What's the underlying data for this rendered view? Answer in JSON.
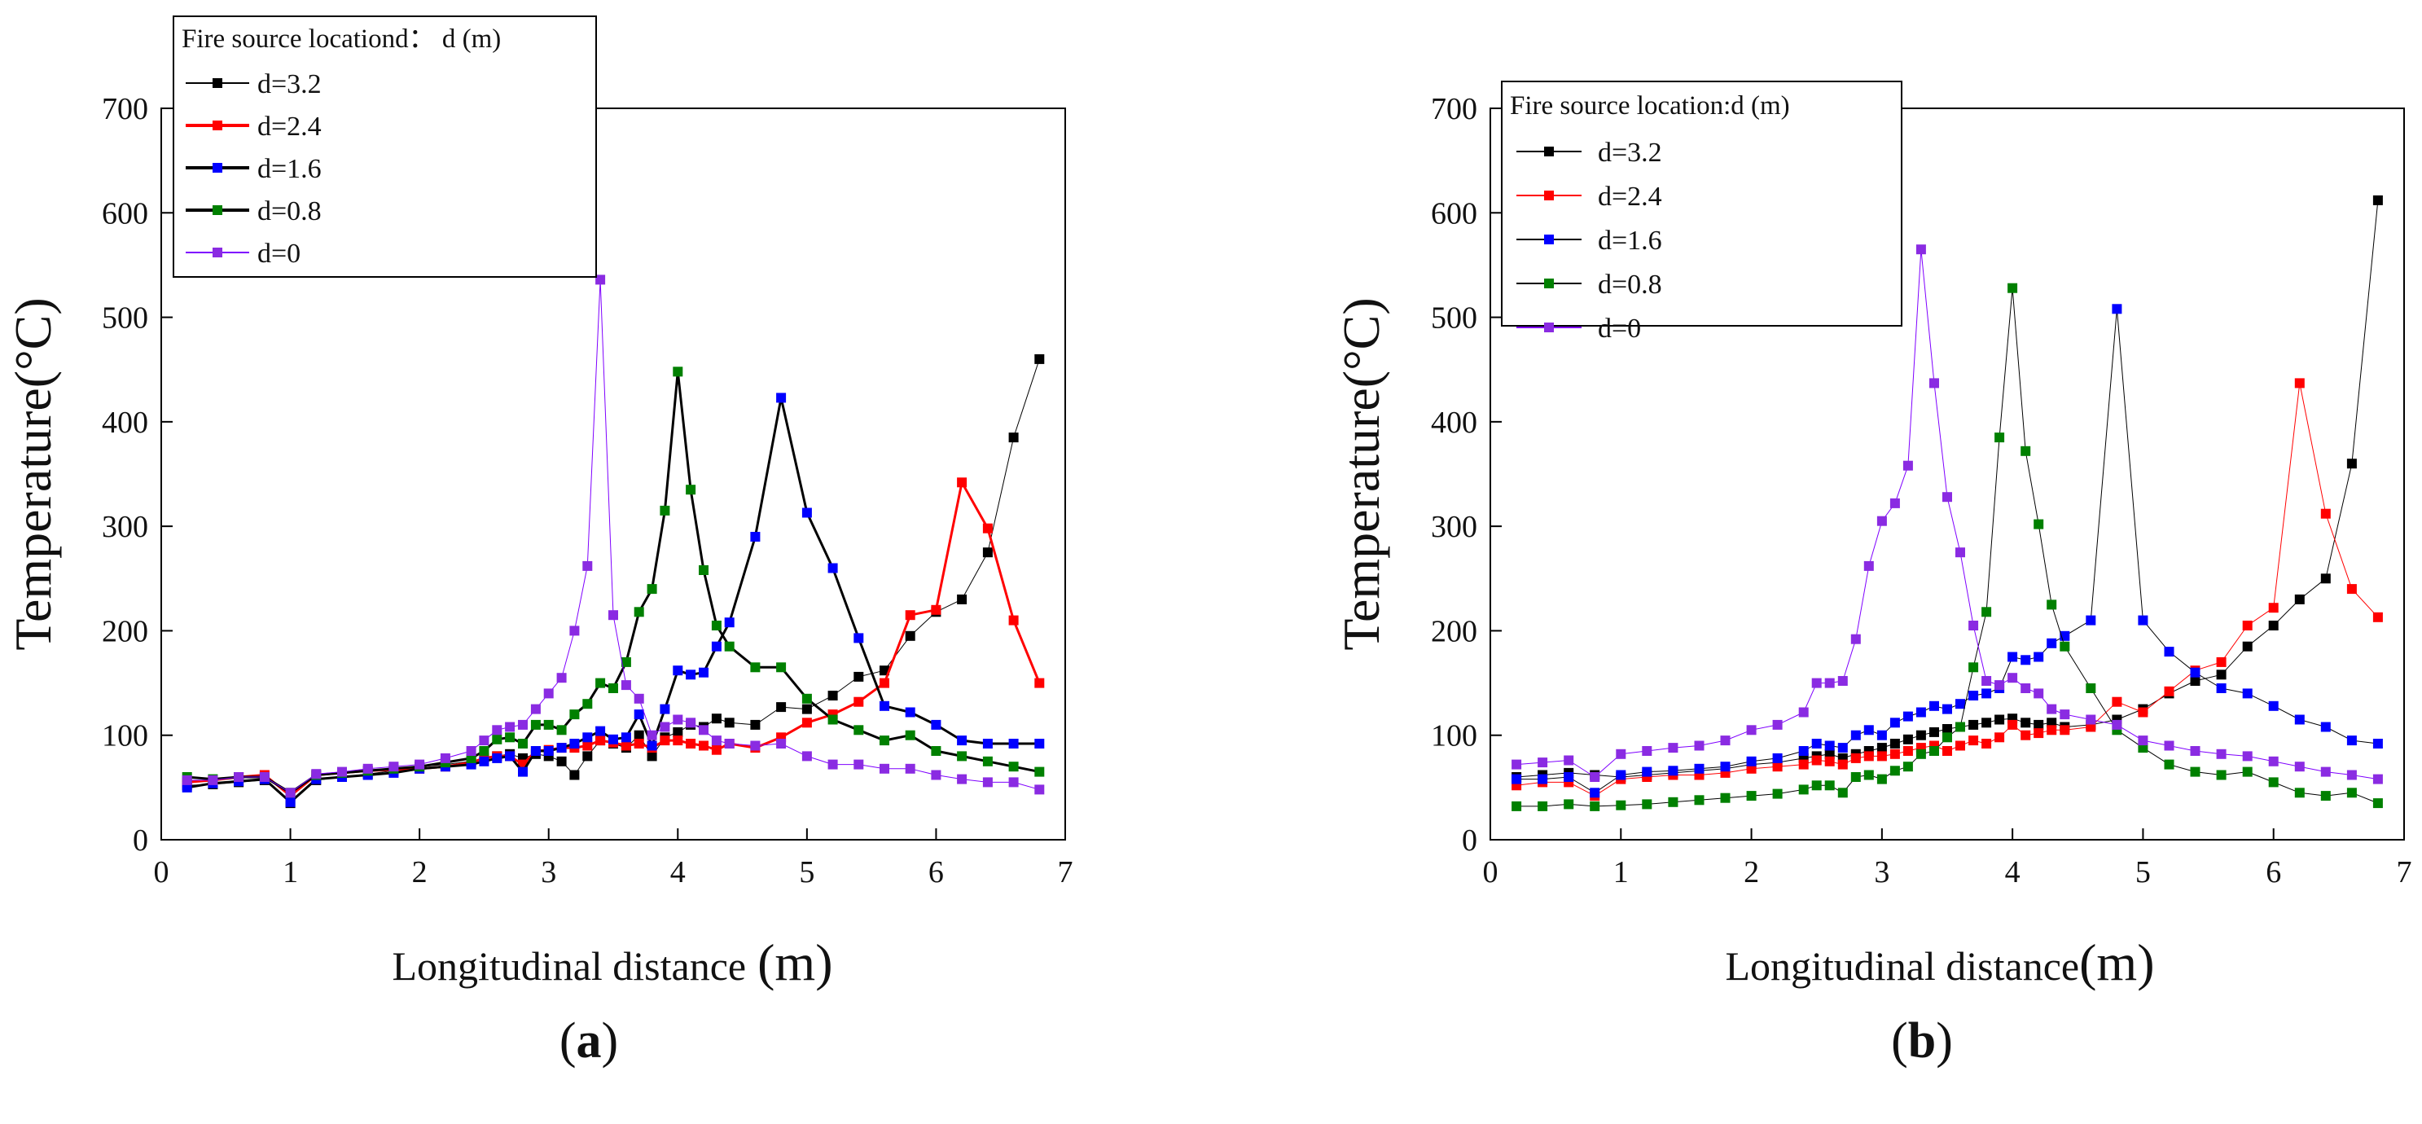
{
  "figure": {
    "panels": [
      {
        "paren_open": "(",
        "letter": "a",
        "paren_close": ")"
      },
      {
        "paren_open": "(",
        "letter": "b",
        "paren_close": ")"
      }
    ]
  },
  "chart_data": [
    {
      "type": "line",
      "panel": "a",
      "title": "",
      "xlabel": "Longitudinal distance",
      "xlabel_unit": "(m)",
      "ylabel": "Temperature(°C)",
      "xlim": [
        0,
        7
      ],
      "ylim": [
        0,
        700
      ],
      "xticks": [
        "0",
        "1",
        "2",
        "3",
        "4",
        "5",
        "6",
        "7"
      ],
      "yticks": [
        "0",
        "100",
        "200",
        "300",
        "400",
        "500",
        "600",
        "700"
      ],
      "grid": false,
      "legend_title": "Fire source locationd： d (m)",
      "legend_position": "top-left",
      "series": [
        {
          "name": "d=3.2",
          "line_color": "#000000",
          "marker_color": "#000000",
          "line_width": 1,
          "x": [
            0.2,
            0.4,
            0.6,
            0.8,
            1.0,
            1.2,
            1.4,
            1.6,
            1.8,
            2.0,
            2.2,
            2.4,
            2.5,
            2.6,
            2.7,
            2.8,
            2.9,
            3.0,
            3.1,
            3.2,
            3.3,
            3.4,
            3.5,
            3.6,
            3.7,
            3.8,
            3.9,
            4.0,
            4.1,
            4.2,
            4.3,
            4.4,
            4.6,
            4.8,
            5.0,
            5.2,
            5.4,
            5.6,
            5.8,
            6.0,
            6.2,
            6.4,
            6.6,
            6.8
          ],
          "y": [
            52,
            53,
            55,
            57,
            35,
            57,
            60,
            63,
            66,
            70,
            72,
            75,
            78,
            80,
            82,
            78,
            82,
            80,
            75,
            62,
            80,
            95,
            92,
            88,
            100,
            80,
            98,
            103,
            110,
            108,
            116,
            112,
            110,
            127,
            125,
            138,
            156,
            162,
            195,
            218,
            230,
            275,
            385,
            460
          ]
        },
        {
          "name": "d=2.4",
          "line_color": "#ff0000",
          "marker_color": "#ff0000",
          "line_width": 3,
          "x": [
            0.2,
            0.4,
            0.6,
            0.8,
            1.0,
            1.2,
            1.4,
            1.6,
            1.8,
            2.0,
            2.2,
            2.4,
            2.5,
            2.6,
            2.7,
            2.8,
            2.9,
            3.0,
            3.1,
            3.2,
            3.3,
            3.4,
            3.5,
            3.6,
            3.7,
            3.8,
            3.9,
            4.0,
            4.1,
            4.2,
            4.3,
            4.4,
            4.6,
            4.8,
            5.0,
            5.2,
            5.4,
            5.6,
            5.8,
            6.0,
            6.2,
            6.4,
            6.6,
            6.8
          ],
          "y": [
            55,
            57,
            60,
            62,
            42,
            62,
            64,
            66,
            67,
            68,
            70,
            74,
            78,
            80,
            80,
            72,
            85,
            86,
            88,
            88,
            90,
            95,
            93,
            90,
            92,
            88,
            95,
            95,
            92,
            90,
            86,
            92,
            88,
            98,
            112,
            120,
            132,
            150,
            215,
            220,
            342,
            298,
            210,
            150
          ]
        },
        {
          "name": "d=1.6",
          "line_color": "#000000",
          "marker_color": "#0000ff",
          "line_width": 3,
          "x": [
            0.2,
            0.4,
            0.6,
            0.8,
            1.0,
            1.2,
            1.4,
            1.6,
            1.8,
            2.0,
            2.2,
            2.4,
            2.5,
            2.6,
            2.7,
            2.8,
            2.9,
            3.0,
            3.1,
            3.2,
            3.3,
            3.4,
            3.5,
            3.6,
            3.7,
            3.8,
            3.9,
            4.0,
            4.1,
            4.2,
            4.3,
            4.4,
            4.6,
            4.8,
            5.0,
            5.2,
            5.4,
            5.6,
            5.8,
            6.0,
            6.2,
            6.4,
            6.6,
            6.8
          ],
          "y": [
            50,
            54,
            56,
            58,
            36,
            58,
            60,
            62,
            64,
            68,
            70,
            72,
            75,
            78,
            80,
            65,
            85,
            85,
            88,
            92,
            98,
            104,
            96,
            98,
            120,
            90,
            125,
            162,
            158,
            160,
            185,
            208,
            290,
            423,
            313,
            260,
            193,
            128,
            122,
            110,
            95,
            92,
            92,
            92
          ]
        },
        {
          "name": "d=0.8",
          "line_color": "#000000",
          "marker_color": "#008000",
          "line_width": 3,
          "x": [
            0.2,
            0.4,
            0.6,
            0.8,
            1.0,
            1.2,
            1.4,
            1.6,
            1.8,
            2.0,
            2.2,
            2.4,
            2.5,
            2.6,
            2.7,
            2.8,
            2.9,
            3.0,
            3.1,
            3.2,
            3.3,
            3.4,
            3.5,
            3.6,
            3.7,
            3.8,
            3.9,
            4.0,
            4.1,
            4.2,
            4.3,
            4.4,
            4.6,
            4.8,
            5.0,
            5.2,
            5.4,
            5.6,
            5.8,
            6.0,
            6.2,
            6.4,
            6.6,
            6.8
          ],
          "y": [
            60,
            58,
            60,
            60,
            45,
            62,
            64,
            66,
            68,
            70,
            74,
            78,
            85,
            96,
            98,
            92,
            110,
            110,
            105,
            120,
            130,
            150,
            145,
            170,
            218,
            240,
            315,
            448,
            335,
            258,
            205,
            185,
            165,
            165,
            135,
            115,
            105,
            95,
            100,
            85,
            80,
            75,
            70,
            65
          ]
        },
        {
          "name": "d=0",
          "line_color": "#7f00ff",
          "marker_color": "#8a2be2",
          "line_width": 1,
          "x": [
            0.2,
            0.4,
            0.6,
            0.8,
            1.0,
            1.2,
            1.4,
            1.6,
            1.8,
            2.0,
            2.2,
            2.4,
            2.5,
            2.6,
            2.7,
            2.8,
            2.9,
            3.0,
            3.1,
            3.2,
            3.3,
            3.4,
            3.5,
            3.6,
            3.7,
            3.8,
            3.9,
            4.0,
            4.1,
            4.2,
            4.3,
            4.4,
            4.6,
            4.8,
            5.0,
            5.2,
            5.4,
            5.6,
            5.8,
            6.0,
            6.2,
            6.4,
            6.6,
            6.8
          ],
          "y": [
            57,
            57,
            60,
            60,
            45,
            63,
            65,
            68,
            70,
            72,
            78,
            85,
            95,
            105,
            108,
            110,
            125,
            140,
            155,
            200,
            262,
            536,
            215,
            148,
            135,
            100,
            108,
            115,
            112,
            105,
            95,
            92,
            90,
            92,
            80,
            72,
            72,
            68,
            68,
            62,
            58,
            55,
            55,
            48
          ]
        }
      ]
    },
    {
      "type": "line",
      "panel": "b",
      "title": "",
      "xlabel": "Longitudinal distance",
      "xlabel_unit": "(m)",
      "ylabel": "Temperature(°C)",
      "xlim": [
        0,
        7
      ],
      "ylim": [
        0,
        700
      ],
      "xticks": [
        "0",
        "1",
        "2",
        "3",
        "4",
        "5",
        "6",
        "7"
      ],
      "yticks": [
        "0",
        "100",
        "200",
        "300",
        "400",
        "500",
        "600",
        "700"
      ],
      "grid": false,
      "legend_title": "Fire source location:d (m)",
      "legend_position": "top-left",
      "series": [
        {
          "name": "d=3.2",
          "line_color": "#000000",
          "marker_color": "#000000",
          "line_width": 1,
          "x": [
            0.2,
            0.4,
            0.6,
            0.8,
            1.0,
            1.2,
            1.4,
            1.6,
            1.8,
            2.0,
            2.2,
            2.4,
            2.5,
            2.6,
            2.7,
            2.8,
            2.9,
            3.0,
            3.1,
            3.2,
            3.3,
            3.4,
            3.5,
            3.6,
            3.7,
            3.8,
            3.9,
            4.0,
            4.1,
            4.2,
            4.3,
            4.4,
            4.6,
            4.8,
            5.0,
            5.2,
            5.4,
            5.6,
            5.8,
            6.0,
            6.2,
            6.4,
            6.6,
            6.8
          ],
          "y": [
            60,
            62,
            64,
            62,
            60,
            62,
            64,
            66,
            68,
            72,
            74,
            78,
            80,
            82,
            78,
            82,
            85,
            88,
            92,
            96,
            100,
            103,
            106,
            108,
            110,
            112,
            115,
            116,
            112,
            110,
            112,
            108,
            110,
            115,
            125,
            140,
            152,
            158,
            185,
            205,
            230,
            250,
            360,
            612
          ]
        },
        {
          "name": "d=2.4",
          "line_color": "#ff0000",
          "marker_color": "#ff0000",
          "line_width": 1,
          "x": [
            0.2,
            0.4,
            0.6,
            0.8,
            1.0,
            1.2,
            1.4,
            1.6,
            1.8,
            2.0,
            2.2,
            2.4,
            2.5,
            2.6,
            2.7,
            2.8,
            2.9,
            3.0,
            3.1,
            3.2,
            3.3,
            3.4,
            3.5,
            3.6,
            3.7,
            3.8,
            3.9,
            4.0,
            4.1,
            4.2,
            4.3,
            4.4,
            4.6,
            4.8,
            5.0,
            5.2,
            5.4,
            5.6,
            5.8,
            6.0,
            6.2,
            6.4,
            6.6,
            6.8
          ],
          "y": [
            52,
            55,
            55,
            42,
            58,
            60,
            62,
            62,
            64,
            68,
            70,
            72,
            76,
            75,
            72,
            78,
            80,
            80,
            82,
            85,
            88,
            90,
            85,
            90,
            95,
            92,
            98,
            110,
            100,
            102,
            105,
            105,
            108,
            132,
            122,
            142,
            162,
            170,
            205,
            222,
            437,
            312,
            240,
            213
          ]
        },
        {
          "name": "d=1.6",
          "line_color": "#000000",
          "marker_color": "#0000ff",
          "line_width": 1,
          "x": [
            0.2,
            0.4,
            0.6,
            0.8,
            1.0,
            1.2,
            1.4,
            1.6,
            1.8,
            2.0,
            2.2,
            2.4,
            2.5,
            2.6,
            2.7,
            2.8,
            2.9,
            3.0,
            3.1,
            3.2,
            3.3,
            3.4,
            3.5,
            3.6,
            3.7,
            3.8,
            3.9,
            4.0,
            4.1,
            4.2,
            4.3,
            4.4,
            4.6,
            4.8,
            5.0,
            5.2,
            5.4,
            5.6,
            5.8,
            6.0,
            6.2,
            6.4,
            6.6,
            6.8
          ],
          "y": [
            58,
            58,
            60,
            45,
            62,
            65,
            66,
            68,
            70,
            75,
            78,
            85,
            92,
            90,
            88,
            100,
            105,
            100,
            112,
            118,
            122,
            128,
            125,
            130,
            138,
            140,
            145,
            175,
            172,
            175,
            188,
            195,
            210,
            508,
            210,
            180,
            160,
            145,
            140,
            128,
            115,
            108,
            95,
            92
          ]
        },
        {
          "name": "d=0.8",
          "line_color": "#000000",
          "marker_color": "#008000",
          "line_width": 1,
          "x": [
            0.2,
            0.4,
            0.6,
            0.8,
            1.0,
            1.2,
            1.4,
            1.6,
            1.8,
            2.0,
            2.2,
            2.4,
            2.5,
            2.6,
            2.7,
            2.8,
            2.9,
            3.0,
            3.1,
            3.2,
            3.3,
            3.4,
            3.5,
            3.6,
            3.7,
            3.8,
            3.9,
            4.0,
            4.1,
            4.2,
            4.3,
            4.4,
            4.6,
            4.8,
            5.0,
            5.2,
            5.4,
            5.6,
            5.8,
            6.0,
            6.2,
            6.4,
            6.6,
            6.8
          ],
          "y": [
            32,
            32,
            34,
            32,
            33,
            34,
            36,
            38,
            40,
            42,
            44,
            48,
            52,
            52,
            45,
            60,
            62,
            58,
            66,
            70,
            82,
            85,
            98,
            108,
            165,
            218,
            385,
            528,
            372,
            302,
            225,
            185,
            145,
            105,
            88,
            72,
            65,
            62,
            65,
            55,
            45,
            42,
            45,
            35
          ]
        },
        {
          "name": "d=0",
          "line_color": "#7f00ff",
          "marker_color": "#8a2be2",
          "line_width": 1,
          "x": [
            0.2,
            0.4,
            0.6,
            0.8,
            1.0,
            1.2,
            1.4,
            1.6,
            1.8,
            2.0,
            2.2,
            2.4,
            2.5,
            2.6,
            2.7,
            2.8,
            2.9,
            3.0,
            3.1,
            3.2,
            3.3,
            3.4,
            3.5,
            3.6,
            3.7,
            3.8,
            3.9,
            4.0,
            4.1,
            4.2,
            4.3,
            4.4,
            4.6,
            4.8,
            5.0,
            5.2,
            5.4,
            5.6,
            5.8,
            6.0,
            6.2,
            6.4,
            6.6,
            6.8
          ],
          "y": [
            72,
            74,
            76,
            60,
            82,
            85,
            88,
            90,
            95,
            105,
            110,
            122,
            150,
            150,
            152,
            192,
            262,
            305,
            322,
            358,
            565,
            437,
            328,
            275,
            205,
            152,
            148,
            155,
            145,
            140,
            125,
            120,
            115,
            110,
            95,
            90,
            85,
            82,
            80,
            75,
            70,
            65,
            62,
            58
          ]
        }
      ]
    }
  ]
}
